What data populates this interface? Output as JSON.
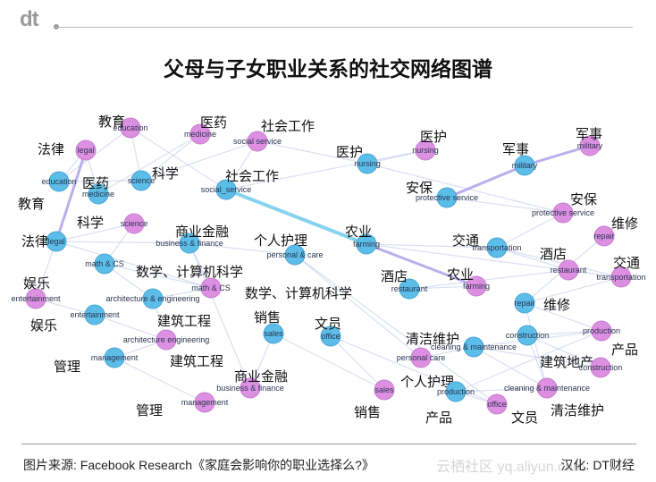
{
  "logo": "dt",
  "title": "父母与子女职业关系的社交网络图谱",
  "footer": {
    "source": "图片来源: Facebook Research《家庭会影响你的职业选择么?》",
    "credit": "汉化: DT财经",
    "watermark": "云栖社区 yq.aliyun.com"
  },
  "colors": {
    "parent_node": "#dd90e2",
    "child_node": "#5cbde8",
    "edge": "#b9c6e8",
    "highlight_edge": "#66c8ea",
    "highlight_edge_purple": "#a79be6"
  },
  "nodes": [
    {
      "id": "p_education",
      "group": "pink",
      "en": "education",
      "zh": "教育"
    },
    {
      "id": "p_legal",
      "group": "pink",
      "en": "legal",
      "zh": "法律"
    },
    {
      "id": "p_medicine",
      "group": "pink",
      "en": "medicine",
      "zh": "医药"
    },
    {
      "id": "p_social",
      "group": "pink",
      "en": "social service",
      "zh": "社会工作"
    },
    {
      "id": "p_science",
      "group": "pink",
      "en": "science",
      "zh": "科学"
    },
    {
      "id": "p_math",
      "group": "pink",
      "en": "math & CS",
      "zh": "数学、计算机科学"
    },
    {
      "id": "p_entertainment",
      "group": "pink",
      "en": "entertainment",
      "zh": "娱乐"
    },
    {
      "id": "p_arch",
      "group": "pink",
      "en": "architecture engineering",
      "zh": "建筑工程"
    },
    {
      "id": "p_business",
      "group": "pink",
      "en": "business & finance",
      "zh": "商业金融"
    },
    {
      "id": "p_management",
      "group": "pink",
      "en": "management",
      "zh": "管理"
    },
    {
      "id": "p_nursing",
      "group": "pink",
      "en": "nursing",
      "zh": "医护"
    },
    {
      "id": "p_military",
      "group": "pink",
      "en": "military",
      "zh": "军事"
    },
    {
      "id": "p_protective",
      "group": "pink",
      "en": "protective service",
      "zh": "安保"
    },
    {
      "id": "p_repair",
      "group": "pink",
      "en": "repair",
      "zh": "维修"
    },
    {
      "id": "p_transport",
      "group": "pink",
      "en": "transportation",
      "zh": "交通"
    },
    {
      "id": "p_restaurant",
      "group": "pink",
      "en": "restaurant",
      "zh": "酒店"
    },
    {
      "id": "p_farming",
      "group": "pink",
      "en": "farming",
      "zh": "农业"
    },
    {
      "id": "p_production",
      "group": "pink",
      "en": "production",
      "zh": "产品"
    },
    {
      "id": "p_construction",
      "group": "pink",
      "en": "construction",
      "zh": "建筑地产"
    },
    {
      "id": "p_cleaning",
      "group": "pink",
      "en": "cleaning & maintenance",
      "zh": "清洁维护"
    },
    {
      "id": "p_office",
      "group": "pink",
      "en": "office",
      "zh": "文员"
    },
    {
      "id": "p_sales",
      "group": "pink",
      "en": "sales",
      "zh": "销售"
    },
    {
      "id": "p_personal",
      "group": "pink",
      "en": "personal care",
      "zh": "个人护理"
    },
    {
      "id": "b_education",
      "group": "blue",
      "en": "education",
      "zh": "教育"
    },
    {
      "id": "b_medicine",
      "group": "blue",
      "en": "medicine",
      "zh": "医药"
    },
    {
      "id": "b_science",
      "group": "blue",
      "en": "science",
      "zh": "科学"
    },
    {
      "id": "b_social",
      "group": "blue",
      "en": "social_service",
      "zh": "社会工作"
    },
    {
      "id": "b_legal",
      "group": "blue",
      "en": "legal",
      "zh": "法律"
    },
    {
      "id": "b_math",
      "group": "blue",
      "en": "math & CS",
      "zh": "数学、计算机科学"
    },
    {
      "id": "b_business",
      "group": "blue",
      "en": "business & finance",
      "zh": "商业金融"
    },
    {
      "id": "b_personal",
      "group": "blue",
      "en": "personal & care",
      "zh": "个人护理"
    },
    {
      "id": "b_arch",
      "group": "blue",
      "en": "architecture & engineering",
      "zh": "建筑工程"
    },
    {
      "id": "b_entertainment",
      "group": "blue",
      "en": "entertainment",
      "zh": "娱乐"
    },
    {
      "id": "b_management",
      "group": "blue",
      "en": "management",
      "zh": "管理"
    },
    {
      "id": "b_sales",
      "group": "blue",
      "en": "sales",
      "zh": "销售"
    },
    {
      "id": "b_office",
      "group": "blue",
      "en": "office",
      "zh": "文员"
    },
    {
      "id": "b_nursing",
      "group": "blue",
      "en": "nursing",
      "zh": "医护"
    },
    {
      "id": "b_protective",
      "group": "blue",
      "en": "protective service",
      "zh": "安保"
    },
    {
      "id": "b_military",
      "group": "blue",
      "en": "military",
      "zh": "军事"
    },
    {
      "id": "b_farming",
      "group": "blue",
      "en": "farming",
      "zh": "农业"
    },
    {
      "id": "b_transport",
      "group": "blue",
      "en": "transportation",
      "zh": "交通"
    },
    {
      "id": "b_restaurant",
      "group": "blue",
      "en": "restaurant",
      "zh": "酒店"
    },
    {
      "id": "b_repair",
      "group": "blue",
      "en": "repair",
      "zh": "维修"
    },
    {
      "id": "b_cleaning",
      "group": "blue",
      "en": "cleaning & maintenance",
      "zh": "清洁维护"
    },
    {
      "id": "b_construction",
      "group": "blue",
      "en": "construction",
      "zh": ""
    },
    {
      "id": "b_production",
      "group": "blue",
      "en": "production",
      "zh": "产品"
    }
  ],
  "highlight_edges": [
    [
      "b_social",
      "b_farming"
    ],
    [
      "b_farming",
      "p_farming"
    ],
    [
      "b_legal",
      "p_legal"
    ],
    [
      "b_military",
      "p_military"
    ],
    [
      "b_protective",
      "b_military"
    ]
  ],
  "edges": [
    [
      "b_education",
      "p_education"
    ],
    [
      "b_education",
      "p_legal"
    ],
    [
      "b_medicine",
      "p_medicine"
    ],
    [
      "b_science",
      "p_medicine"
    ],
    [
      "b_science",
      "p_education"
    ],
    [
      "b_social",
      "p_social"
    ],
    [
      "b_social",
      "p_education"
    ],
    [
      "b_legal",
      "p_science"
    ],
    [
      "b_legal",
      "p_math"
    ],
    [
      "b_math",
      "p_math"
    ],
    [
      "b_math",
      "p_science"
    ],
    [
      "b_business",
      "p_business"
    ],
    [
      "b_business",
      "p_math"
    ],
    [
      "b_arch",
      "p_arch"
    ],
    [
      "b_arch",
      "p_math"
    ],
    [
      "b_entertainment",
      "p_entertainment"
    ],
    [
      "b_management",
      "p_management"
    ],
    [
      "b_management",
      "p_arch"
    ],
    [
      "b_sales",
      "p_sales"
    ],
    [
      "b_sales",
      "p_business"
    ],
    [
      "b_office",
      "p_office"
    ],
    [
      "b_personal",
      "p_personal"
    ],
    [
      "b_nursing",
      "p_nursing"
    ],
    [
      "b_nursing",
      "p_social"
    ],
    [
      "b_protective",
      "p_protective"
    ],
    [
      "b_transport",
      "p_transport"
    ],
    [
      "b_transport",
      "p_restaurant"
    ],
    [
      "b_restaurant",
      "p_restaurant"
    ],
    [
      "b_restaurant",
      "p_farming"
    ],
    [
      "b_repair",
      "p_repair"
    ],
    [
      "b_repair",
      "p_transport"
    ],
    [
      "b_cleaning",
      "p_cleaning"
    ],
    [
      "b_cleaning",
      "p_personal"
    ],
    [
      "b_construction",
      "p_construction"
    ],
    [
      "b_construction",
      "p_production"
    ],
    [
      "b_production",
      "p_production"
    ],
    [
      "b_production",
      "p_office"
    ],
    [
      "b_production",
      "p_cleaning"
    ],
    [
      "b_farming",
      "p_transport"
    ],
    [
      "b_social",
      "p_nursing"
    ],
    [
      "b_education",
      "b_science"
    ],
    [
      "b_legal",
      "b_business"
    ],
    [
      "b_math",
      "b_arch"
    ],
    [
      "b_business",
      "b_personal"
    ],
    [
      "b_farming",
      "b_transport"
    ],
    [
      "b_repair",
      "p_cleaning"
    ],
    [
      "b_cleaning",
      "p_construction"
    ],
    [
      "b_construction",
      "p_cleaning"
    ],
    [
      "b_office",
      "p_sales"
    ],
    [
      "b_medicine",
      "p_legal"
    ],
    [
      "b_science",
      "p_social"
    ],
    [
      "b_entertainment",
      "p_arch"
    ],
    [
      "b_legal",
      "p_entertainment"
    ],
    [
      "b_repair",
      "p_production"
    ],
    [
      "b_transport",
      "p_protective"
    ],
    [
      "b_cleaning",
      "p_production"
    ],
    [
      "b_personal",
      "p_office"
    ],
    [
      "b_nursing",
      "p_protective"
    ]
  ]
}
